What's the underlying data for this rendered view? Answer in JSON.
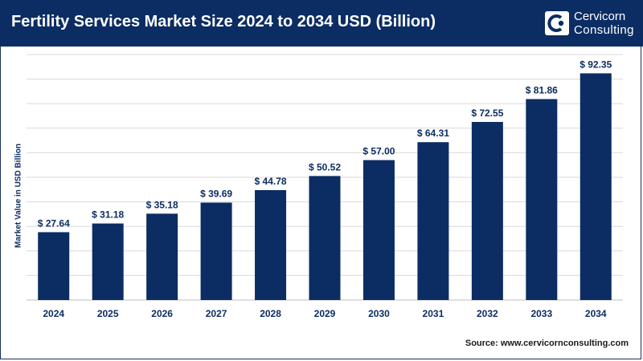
{
  "header": {
    "title": "Fertility Services Market Size 2024 to 2034 USD (Billion)",
    "brand_line1": "Cervicorn",
    "brand_line2": "Consulting"
  },
  "source": "Source: www.cervicornconsulting.com",
  "colors": {
    "header_bg": "#0c2d63",
    "bar": "#0c2d63",
    "grid": "#d9d9d9"
  },
  "chart_data": {
    "type": "bar",
    "ylabel": "Market Value in USD Billion",
    "categories": [
      "2024",
      "2025",
      "2026",
      "2027",
      "2028",
      "2029",
      "2030",
      "2031",
      "2032",
      "2033",
      "2034"
    ],
    "values": [
      27.64,
      31.18,
      35.18,
      39.69,
      44.78,
      50.52,
      57.0,
      64.31,
      72.55,
      81.86,
      92.35
    ],
    "data_labels": [
      "$ 27.64",
      "$ 31.18",
      "$ 35.18",
      "$ 39.69",
      "$ 44.78",
      "$ 50.52",
      "$ 57.00",
      "$ 64.31",
      "$ 72.55",
      "$ 81.86",
      "$ 92.35"
    ],
    "ylim": [
      0,
      100
    ],
    "grid": true
  }
}
